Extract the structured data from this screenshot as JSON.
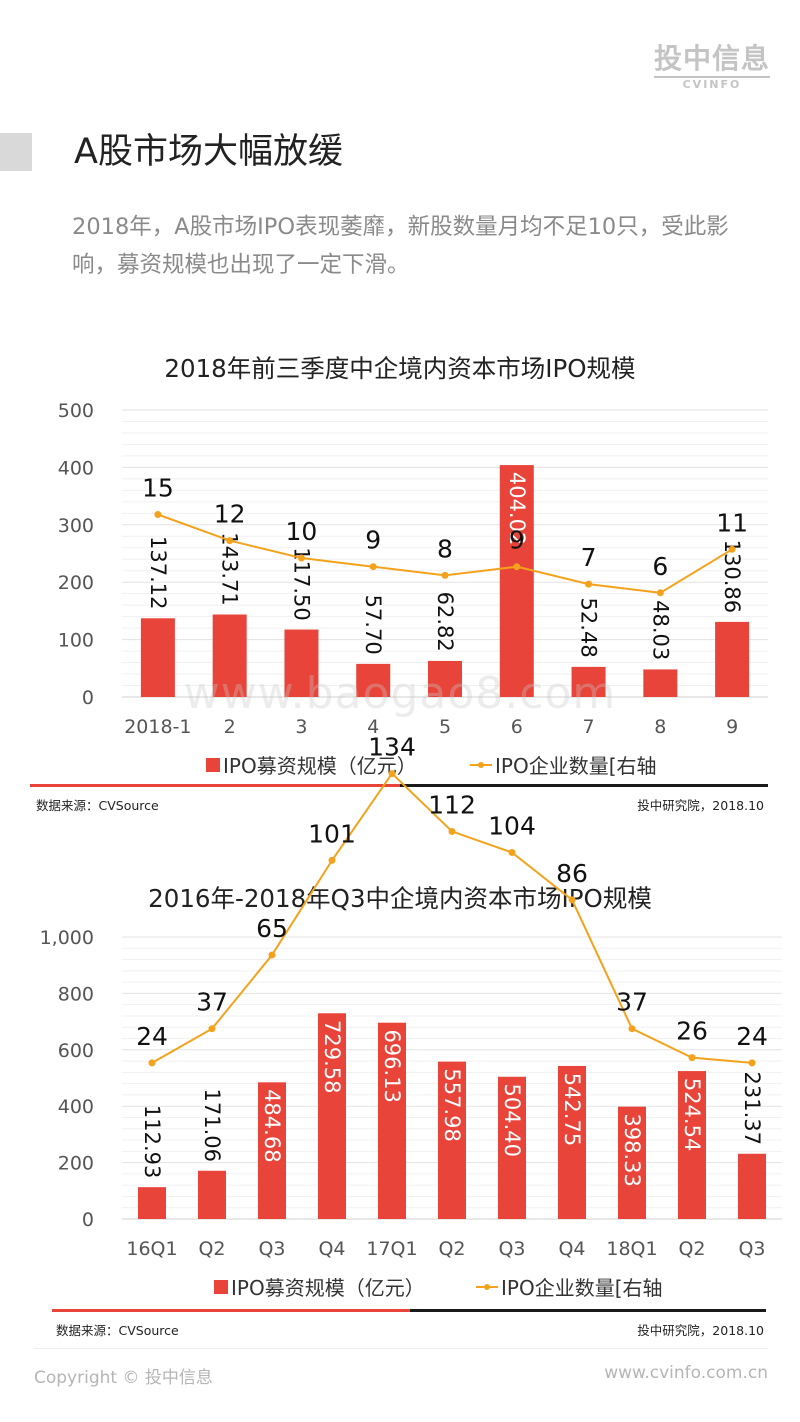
{
  "header": {
    "logo_cn": "投中信息",
    "logo_en": "CVINFO",
    "title": "A股市场大幅放缓",
    "subtitle": "2018年，A股市场IPO表现萎靡，新股数量月均不足10只，受此影响，募资规模也出现了一定下滑。"
  },
  "watermark": "www.baogao8.com",
  "footer": {
    "copyright": "Copyright © 投中信息",
    "website": "www.cvinfo.com.cn"
  },
  "colors": {
    "bar": "#e8443a",
    "line": "#f4a21c",
    "grid": "#e6e6e6",
    "axis": "#d0d0d0",
    "divider_red": "#e8443a",
    "divider_dark": "#1a1a1a"
  },
  "chart_data": [
    {
      "type": "bar",
      "title": "2018年前三季度中企境内资本市场IPO规模",
      "categories": [
        "2018-1",
        "2",
        "3",
        "4",
        "5",
        "6",
        "7",
        "8",
        "9"
      ],
      "ylim": [
        0,
        500
      ],
      "yticks": [
        0,
        100,
        200,
        300,
        400,
        500
      ],
      "ytick_labels": [
        "0",
        "100",
        "200",
        "300",
        "400",
        "500"
      ],
      "series": [
        {
          "name": "IPO募资规模（亿元）",
          "type": "bar",
          "axis": "left",
          "values": [
            137.12,
            143.71,
            117.5,
            57.7,
            62.82,
            404.02,
            52.48,
            48.03,
            130.86
          ],
          "labels": [
            "137.12",
            "143.71",
            "117.50",
            "57.70",
            "62.82",
            "404.02",
            "52.48",
            "48.03",
            "130.86"
          ]
        },
        {
          "name": "IPO企业数量[右轴",
          "type": "line",
          "axis": "right",
          "values": [
            15,
            12,
            10,
            9,
            8,
            9,
            7,
            6,
            11
          ],
          "labels": [
            "15",
            "12",
            "10",
            "9",
            "8",
            "9",
            "7",
            "6",
            "11"
          ]
        }
      ],
      "grid": true,
      "legend": "bottom",
      "source": "数据来源：CVSource",
      "credit": "投中研究院，2018.10"
    },
    {
      "type": "bar",
      "title": "2016年-2018年Q3中企境内资本市场IPO规模",
      "categories": [
        "16Q1",
        "Q2",
        "Q3",
        "Q4",
        "17Q1",
        "Q2",
        "Q3",
        "Q4",
        "18Q1",
        "Q2",
        "Q3"
      ],
      "ylim": [
        0,
        1000
      ],
      "yticks": [
        0,
        200,
        400,
        600,
        800,
        1000
      ],
      "ytick_labels": [
        "0",
        "200",
        "400",
        "600",
        "800",
        "1,000"
      ],
      "series": [
        {
          "name": "IPO募资规模（亿元）",
          "type": "bar",
          "axis": "left",
          "values": [
            112.93,
            171.06,
            484.68,
            729.58,
            696.13,
            557.98,
            504.4,
            542.75,
            398.33,
            524.54,
            231.37
          ],
          "labels": [
            "112.93",
            "171.06",
            "484.68",
            "729.58",
            "696.13",
            "557.98",
            "504.40",
            "542.75",
            "398.33",
            "524.54",
            "231.37"
          ]
        },
        {
          "name": "IPO企业数量[右轴",
          "type": "line",
          "axis": "right",
          "values": [
            24,
            37,
            65,
            101,
            134,
            112,
            104,
            86,
            37,
            26,
            24
          ],
          "labels": [
            "24",
            "37",
            "65",
            "101",
            "134",
            "112",
            "104",
            "86",
            "37",
            "26",
            "24"
          ]
        }
      ],
      "grid": true,
      "legend": "bottom",
      "source": "数据来源：CVSource",
      "credit": "投中研究院，2018.10"
    }
  ]
}
